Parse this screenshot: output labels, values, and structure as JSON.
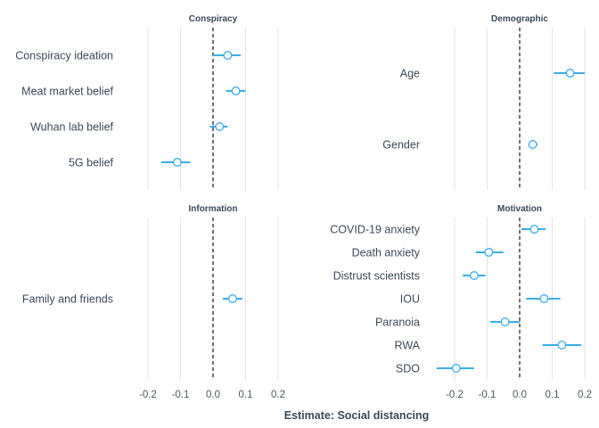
{
  "chart_data": {
    "type": "forest",
    "xlabel": "Estimate: Social distancing",
    "x_ticks": [
      -0.2,
      -0.1,
      0.0,
      0.1,
      0.2
    ],
    "x_tick_labels": [
      "-0.2",
      "-0.1",
      "0.0",
      "0.1",
      "0.2"
    ],
    "xlim": [
      -0.2,
      0.2
    ],
    "reference_line": 0,
    "grid": true,
    "colors": {
      "estimate": "#3aaee8",
      "point_fill": "#ffffff",
      "grid": "#e3e3e3",
      "text": "#3b4a5a"
    },
    "panels": [
      {
        "title": "Conspiracy",
        "items": [
          {
            "label": "Conspiracy ideation",
            "estimate": 0.045,
            "lower": 0.0,
            "upper": 0.085
          },
          {
            "label": "Meat market belief",
            "estimate": 0.07,
            "lower": 0.04,
            "upper": 0.1
          },
          {
            "label": "Wuhan lab belief",
            "estimate": 0.02,
            "lower": -0.01,
            "upper": 0.045
          },
          {
            "label": "5G belief",
            "estimate": -0.11,
            "lower": -0.16,
            "upper": -0.07
          }
        ]
      },
      {
        "title": "Demographic",
        "items": [
          {
            "label": "Age",
            "estimate": 0.155,
            "lower": 0.105,
            "upper": 0.2
          },
          {
            "label": "Gender",
            "estimate": 0.04,
            "lower": 0.03,
            "upper": 0.055
          }
        ]
      },
      {
        "title": "Information",
        "items": [
          {
            "label": "Family and friends",
            "estimate": 0.06,
            "lower": 0.03,
            "upper": 0.09
          }
        ]
      },
      {
        "title": "Motivation",
        "items": [
          {
            "label": "COVID-19 anxiety",
            "estimate": 0.045,
            "lower": 0.005,
            "upper": 0.08
          },
          {
            "label": "Death anxiety",
            "estimate": -0.095,
            "lower": -0.135,
            "upper": -0.05
          },
          {
            "label": "Distrust scientists",
            "estimate": -0.14,
            "lower": -0.175,
            "upper": -0.105
          },
          {
            "label": "IOU",
            "estimate": 0.075,
            "lower": 0.02,
            "upper": 0.125
          },
          {
            "label": "Paranoia",
            "estimate": -0.045,
            "lower": -0.09,
            "upper": 0.0
          },
          {
            "label": "RWA",
            "estimate": 0.13,
            "lower": 0.07,
            "upper": 0.19
          },
          {
            "label": "SDO",
            "estimate": -0.195,
            "lower": -0.255,
            "upper": -0.14
          }
        ]
      }
    ]
  }
}
